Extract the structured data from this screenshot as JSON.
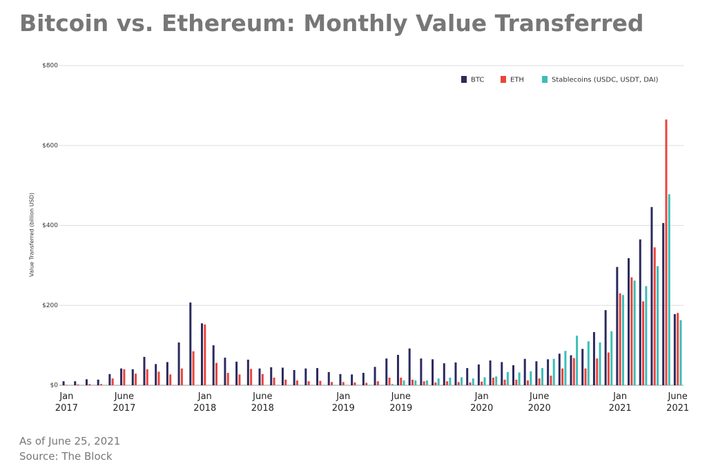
{
  "chart_data": {
    "type": "grouped_bar",
    "title": "Bitcoin vs. Ethereum: Monthly Value Transferred",
    "y_label": "Value Transferred (billion USD)",
    "notes": [
      "As of June 25, 2021",
      "Source: The Block"
    ],
    "categories": [
      "Jan 2017",
      null,
      null,
      null,
      null,
      "June 2017",
      null,
      null,
      null,
      null,
      null,
      null,
      "Jan 2018",
      null,
      null,
      null,
      null,
      "June 2018",
      null,
      null,
      null,
      null,
      null,
      null,
      "Jan 2019",
      null,
      null,
      null,
      null,
      "June 2019",
      null,
      null,
      null,
      null,
      null,
      null,
      "Jan 2020",
      null,
      null,
      null,
      null,
      "June 2020",
      null,
      null,
      null,
      null,
      null,
      null,
      "Jan 2021",
      null,
      null,
      null,
      null,
      "June 2021"
    ],
    "series": [
      {
        "name": "BTC",
        "color": "#2b2a5e",
        "values": [
          10,
          10,
          15,
          14,
          28,
          42,
          40,
          71,
          53,
          58,
          107,
          207,
          155,
          100,
          69,
          59,
          64,
          42,
          45,
          44,
          38,
          42,
          43,
          33,
          28,
          27,
          31,
          46,
          67,
          76,
          92,
          67,
          65,
          55,
          57,
          43,
          52,
          62,
          58,
          50,
          66,
          60,
          65,
          79,
          75,
          91,
          133,
          188,
          296,
          318,
          365,
          446,
          406,
          178
        ]
      },
      {
        "name": "ETH",
        "color": "#e8453c",
        "values": [
          1,
          2,
          3,
          3,
          17,
          40,
          29,
          40,
          34,
          27,
          42,
          85,
          152,
          56,
          31,
          27,
          41,
          28,
          19,
          14,
          12,
          10,
          11,
          8,
          8,
          7,
          6,
          10,
          19,
          19,
          14,
          10,
          7,
          10,
          8,
          7,
          9,
          19,
          14,
          14,
          12,
          17,
          24,
          42,
          68,
          42,
          67,
          82,
          230,
          270,
          210,
          345,
          665,
          181
        ]
      },
      {
        "name": "Stablecoins (USDC, USDT, DAI)",
        "color": "#3dbdb8",
        "values": [
          0,
          0,
          0,
          0,
          0,
          0,
          0,
          0,
          0,
          0,
          0,
          0,
          0,
          0,
          0,
          0,
          0,
          0,
          1,
          1,
          1,
          1,
          1,
          1,
          1,
          1,
          1,
          1,
          3,
          12,
          12,
          12,
          17,
          19,
          20,
          17,
          20,
          22,
          33,
          32,
          35,
          43,
          66,
          86,
          124,
          110,
          107,
          135,
          226,
          262,
          248,
          298,
          478,
          163
        ]
      }
    ],
    "ylim": [
      0,
      800
    ],
    "yticks": [
      {
        "value": 0,
        "label": "$0"
      },
      {
        "value": 200,
        "label": "$200"
      },
      {
        "value": 400,
        "label": "$400"
      },
      {
        "value": 600,
        "label": "$600"
      },
      {
        "value": 800,
        "label": "$800"
      }
    ],
    "grid": true,
    "legend": "top-right"
  }
}
